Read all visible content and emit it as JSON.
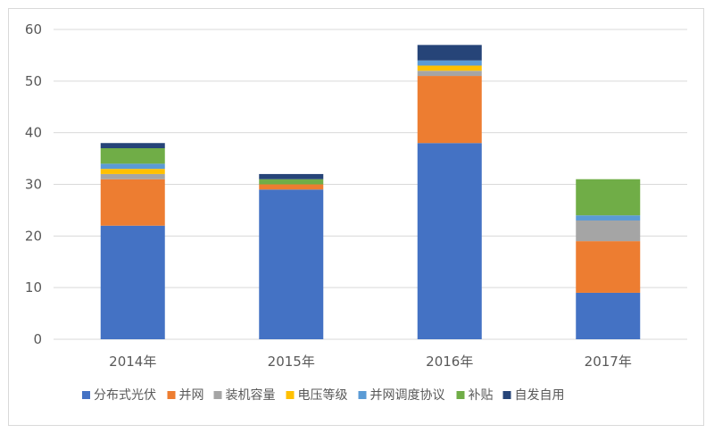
{
  "chart_data": {
    "type": "bar",
    "stacked": true,
    "title": "",
    "xlabel": "",
    "ylabel": "",
    "categories": [
      "2014年",
      "2015年",
      "2016年",
      "2017年"
    ],
    "ylim": [
      0,
      60
    ],
    "yticks": [
      0,
      10,
      20,
      30,
      40,
      50,
      60
    ],
    "grid": true,
    "legend": "bottom",
    "series": [
      {
        "name": "分布式光伏",
        "color": "#4472c4",
        "values": [
          22,
          29,
          38,
          9
        ]
      },
      {
        "name": "并网",
        "color": "#ed7d31",
        "values": [
          9,
          1,
          13,
          10
        ]
      },
      {
        "name": "装机容量",
        "color": "#a5a5a5",
        "values": [
          1,
          0,
          1,
          4
        ]
      },
      {
        "name": "电压等级",
        "color": "#ffc000",
        "values": [
          1,
          0,
          1,
          0
        ]
      },
      {
        "name": "并网调度协议",
        "color": "#5b9bd5",
        "values": [
          1,
          0,
          1,
          1
        ]
      },
      {
        "name": "补贴",
        "color": "#70ad47",
        "values": [
          3,
          1,
          0,
          7
        ]
      },
      {
        "name": "自发自用",
        "color": "#264478",
        "values": [
          1,
          1,
          3,
          0
        ]
      }
    ]
  }
}
